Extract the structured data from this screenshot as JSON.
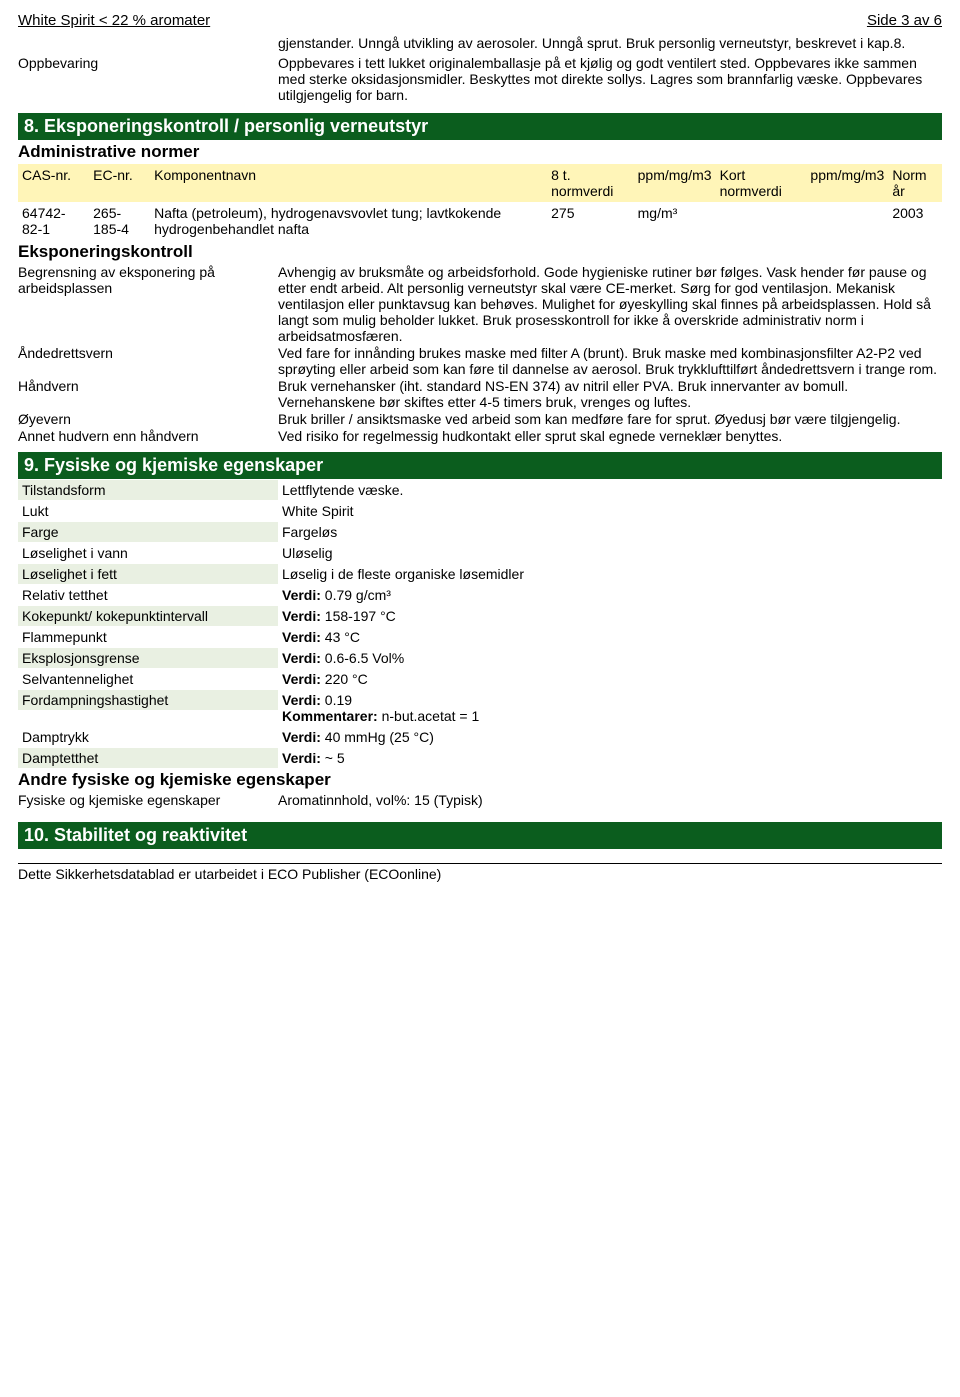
{
  "header": {
    "left": "White Spirit < 22 % aromater",
    "right": "Side 3 av 6"
  },
  "intro": {
    "text": "gjenstander. Unngå utvikling av aerosoler. Unngå sprut. Bruk personlig verneutstyr, beskrevet i kap.8.",
    "storage_label": "Oppbevaring",
    "storage_text": "Oppbevares i tett lukket originalemballasje på et kjølig og godt ventilert sted. Oppbevares ikke sammen med sterke oksidasjonsmidler. Beskyttes mot direkte sollys. Lagres som brannfarlig væske. Oppbevares utilgjengelig for barn."
  },
  "section8": {
    "title": "8. Eksponeringskontroll / personlig verneutstyr",
    "sub1": "Administrative normer",
    "headers": [
      "CAS-nr.",
      "EC-nr.",
      "Komponentnavn",
      "8 t. normverdi",
      "ppm/mg/m3",
      "Kort normverdi",
      "ppm/mg/m3",
      "Norm år"
    ],
    "row": [
      "64742-82-1",
      "265-185-4",
      "Nafta (petroleum), hydrogenavsvovlet tung; lavtkokende hydrogenbehandlet nafta",
      "275",
      "mg/m³",
      "",
      "",
      "2003"
    ],
    "sub2": "Eksponeringskontroll",
    "items": [
      {
        "k": "Begrensning av eksponering på arbeidsplassen",
        "v": "Avhengig av bruksmåte og arbeidsforhold. Gode hygieniske rutiner bør følges. Vask hender før pause og etter endt arbeid. Alt personlig verneutstyr skal være CE-merket. Sørg for god ventilasjon. Mekanisk ventilasjon eller punktavsug kan behøves. Mulighet for øyeskylling skal finnes på arbeidsplassen. Hold så langt som mulig beholder lukket. Bruk prosesskontroll for ikke å overskride administrativ norm i arbeidsatmosfæren."
      },
      {
        "k": "Åndedrettsvern",
        "v": "Ved fare for innånding brukes maske med filter A (brunt). Bruk maske med kombinasjonsfilter A2-P2 ved sprøyting eller arbeid som kan føre til dannelse av aerosol. Bruk trykklufttilført åndedrettsvern i trange rom."
      },
      {
        "k": "Håndvern",
        "v": "Bruk vernehansker (iht. standard NS-EN 374) av nitril eller PVA. Bruk innervanter av bomull. Vernehanskene bør skiftes etter 4-5 timers bruk, vrenges og luftes."
      },
      {
        "k": "Øyevern",
        "v": "Bruk briller / ansiktsmaske ved arbeid som kan medføre fare for sprut. Øyedusj bør være tilgjengelig."
      },
      {
        "k": "Annet hudvern enn håndvern",
        "v": "Ved risiko for regelmessig hudkontakt eller sprut skal egnede verneklær benyttes."
      }
    ]
  },
  "section9": {
    "title": "9. Fysiske og kjemiske egenskaper",
    "items": [
      {
        "k": "Tilstandsform",
        "v": "Lettflytende væske."
      },
      {
        "k": "Lukt",
        "v": "White Spirit"
      },
      {
        "k": "Farge",
        "v": "Fargeløs"
      },
      {
        "k": "Løselighet i vann",
        "v": "Uløselig"
      },
      {
        "k": "Løselighet i fett",
        "v": "Løselig i de fleste organiske løsemidler"
      },
      {
        "k": "Relativ tetthet",
        "v": "Verdi: 0.79 g/cm³",
        "b": "Verdi:"
      },
      {
        "k": "Kokepunkt/ kokepunktintervall",
        "v": "Verdi: 158-197 °C",
        "b": "Verdi:"
      },
      {
        "k": "Flammepunkt",
        "v": "Verdi: 43 °C",
        "b": "Verdi:"
      },
      {
        "k": "Eksplosjonsgrense",
        "v": "Verdi: 0.6-6.5 Vol%",
        "b": "Verdi:"
      },
      {
        "k": "Selvantennelighet",
        "v": "Verdi: 220 °C",
        "b": "Verdi:"
      },
      {
        "k": "Fordampningshastighet",
        "v": "Verdi: 0.19",
        "b": "Verdi:",
        "extra_b": "Kommentarer:",
        "extra": " n-but.acetat = 1"
      },
      {
        "k": "Damptrykk",
        "v": "Verdi: 40 mmHg (25 °C)",
        "b": "Verdi:"
      },
      {
        "k": "Damptetthet",
        "v": "Verdi: ~ 5",
        "b": "Verdi:"
      }
    ],
    "sub2": "Andre fysiske og kjemiske egenskaper",
    "other": {
      "k": "Fysiske og kjemiske egenskaper",
      "v": "Aromatinnhold, vol%: 15 (Typisk)"
    }
  },
  "section10": {
    "title": "10. Stabilitet og reaktivitet"
  },
  "footer": "Dette Sikkerhetsdatablad er utarbeidet i ECO Publisher (ECOonline)"
}
